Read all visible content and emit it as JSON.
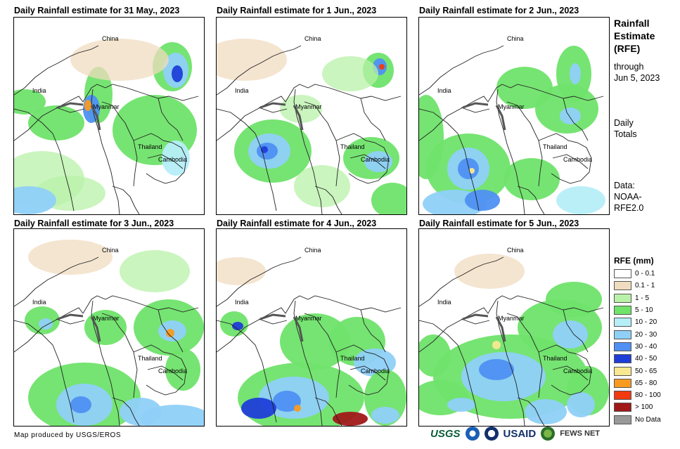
{
  "panels": [
    {
      "title": "Daily Rainfall estimate for 31 May., 2023"
    },
    {
      "title": "Daily Rainfall estimate for 1 Jun., 2023"
    },
    {
      "title": "Daily Rainfall estimate for 2 Jun., 2023"
    },
    {
      "title": "Daily Rainfall estimate for 3 Jun., 2023"
    },
    {
      "title": "Daily Rainfall estimate for 4 Jun., 2023"
    },
    {
      "title": "Daily Rainfall estimate for 5 Jun., 2023"
    }
  ],
  "map_labels": {
    "china": "China",
    "india": "India",
    "myanmar": "Myanmar",
    "thailand": "Thailand",
    "cambodia": "Cambodia"
  },
  "sidebar": {
    "title_line1": "Rainfall",
    "title_line2": "Estimate",
    "title_line3": "(RFE)",
    "through_line1": "through",
    "through_line2": "Jun 5, 2023",
    "daily_line1": "Daily",
    "daily_line2": "Totals",
    "data_line1": "Data:",
    "data_line2": "NOAA-",
    "data_line3": "RFE2.0"
  },
  "legend": {
    "title": "RFE (mm)",
    "items": [
      {
        "label": "0 - 0.1",
        "color": "#ffffff"
      },
      {
        "label": "0.1 - 1",
        "color": "#f0dcc0"
      },
      {
        "label": "1 - 5",
        "color": "#b8f2a8"
      },
      {
        "label": "5 - 10",
        "color": "#6fe36a"
      },
      {
        "label": "10 - 20",
        "color": "#b6eef8"
      },
      {
        "label": "20 - 30",
        "color": "#8fd0f8"
      },
      {
        "label": "30 - 40",
        "color": "#4f90f2"
      },
      {
        "label": "40 - 50",
        "color": "#1f3ed8"
      },
      {
        "label": "50 - 65",
        "color": "#f8e890"
      },
      {
        "label": "65 - 80",
        "color": "#f89a20"
      },
      {
        "label": "80 - 100",
        "color": "#f23a10"
      },
      {
        "label": "> 100",
        "color": "#a01818"
      },
      {
        "label": "No Data",
        "color": "#999999"
      }
    ]
  },
  "footer": {
    "credit": "Map produced by USGS/EROS",
    "logo_usgs": "USGS",
    "logo_usaid": "USAID",
    "logo_fews": "FEWS NET"
  }
}
